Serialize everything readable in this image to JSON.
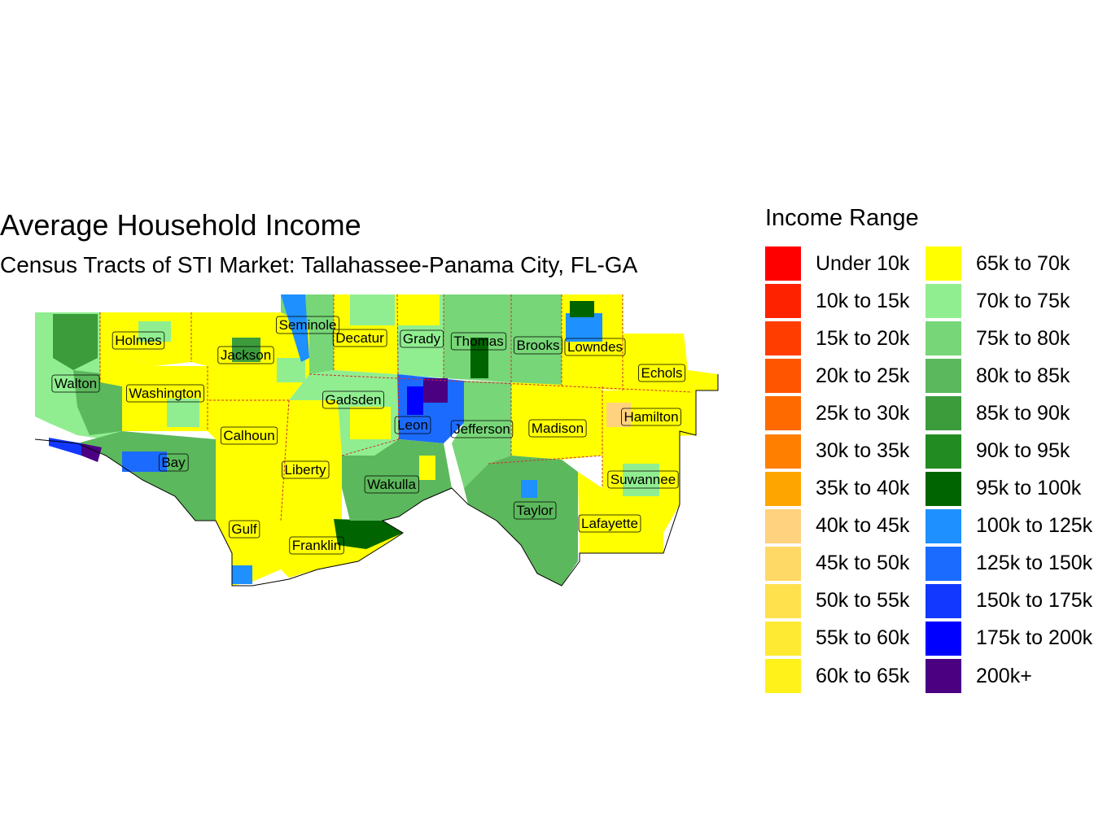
{
  "title": "Average Household Income",
  "subtitle": "Census Tracts of STI Market: Tallahassee-Panama City, FL-GA",
  "legend": {
    "title": "Income Range",
    "items": [
      {
        "label": "Under 10k",
        "color": "#FF0000"
      },
      {
        "label": "10k to 15k",
        "color": "#FF2200"
      },
      {
        "label": "15k to 20k",
        "color": "#FF3D00"
      },
      {
        "label": "20k to 25k",
        "color": "#FF5500"
      },
      {
        "label": "25k to 30k",
        "color": "#FF6A00"
      },
      {
        "label": "30k to 35k",
        "color": "#FF8000"
      },
      {
        "label": "35k to 40k",
        "color": "#FFA500"
      },
      {
        "label": "40k to 45k",
        "color": "#FFD27F"
      },
      {
        "label": "45k to 50k",
        "color": "#FFD966"
      },
      {
        "label": "50k to 55k",
        "color": "#FFE14D"
      },
      {
        "label": "55k to 60k",
        "color": "#FFEA33"
      },
      {
        "label": "60k to 65k",
        "color": "#FFF21A"
      },
      {
        "label": "65k to 70k",
        "color": "#FFFF00"
      },
      {
        "label": "70k to 75k",
        "color": "#90EE90"
      },
      {
        "label": "75k to 80k",
        "color": "#77D677"
      },
      {
        "label": "80k to 85k",
        "color": "#5CB85C"
      },
      {
        "label": "85k to 90k",
        "color": "#3C9C3C"
      },
      {
        "label": "90k to 95k",
        "color": "#228B22"
      },
      {
        "label": "95k to 100k",
        "color": "#006400"
      },
      {
        "label": "100k to 125k",
        "color": "#1E90FF"
      },
      {
        "label": "125k to 150k",
        "color": "#1C6BFF"
      },
      {
        "label": "150k to 175k",
        "color": "#1238FF"
      },
      {
        "label": "175k to 200k",
        "color": "#0000FF"
      },
      {
        "label": "200k+",
        "color": "#4B0082"
      }
    ]
  },
  "counties": [
    {
      "name": "Holmes"
    },
    {
      "name": "Seminole"
    },
    {
      "name": "Decatur"
    },
    {
      "name": "Grady"
    },
    {
      "name": "Thomas"
    },
    {
      "name": "Brooks"
    },
    {
      "name": "Lowndes"
    },
    {
      "name": "Jackson"
    },
    {
      "name": "Echols"
    },
    {
      "name": "Walton"
    },
    {
      "name": "Washington"
    },
    {
      "name": "Gadsden"
    },
    {
      "name": "Hamilton"
    },
    {
      "name": "Leon"
    },
    {
      "name": "Jefferson"
    },
    {
      "name": "Madison"
    },
    {
      "name": "Calhoun"
    },
    {
      "name": "Bay"
    },
    {
      "name": "Liberty"
    },
    {
      "name": "Suwannee"
    },
    {
      "name": "Wakulla"
    },
    {
      "name": "Taylor"
    },
    {
      "name": "Lafayette"
    },
    {
      "name": "Gulf"
    },
    {
      "name": "Franklin"
    }
  ]
}
